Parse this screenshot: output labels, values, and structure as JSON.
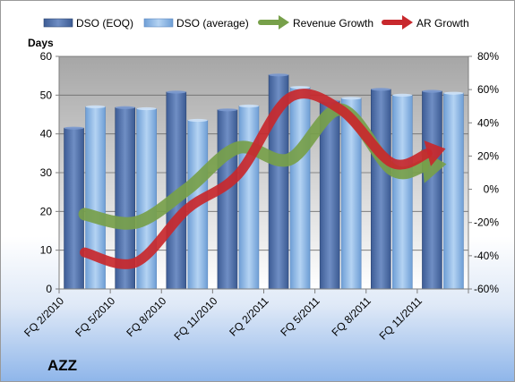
{
  "chart_data": {
    "type": "bar",
    "title": "AZZ",
    "ylabel": "Days",
    "xlabel": "",
    "categories": [
      "FQ 2/2010",
      "FQ 5/2010",
      "FQ 8/2010",
      "FQ 11/2010",
      "FQ 2/2011",
      "FQ 5/2011",
      "FQ 8/2011",
      "FQ 11/2011"
    ],
    "ylim": [
      0,
      60
    ],
    "y_ticks": [
      "0",
      "10",
      "20",
      "30",
      "40",
      "50",
      "60"
    ],
    "y2lim": [
      -60,
      80
    ],
    "y2_ticks": [
      "-60%",
      "-40%",
      "-20%",
      "0%",
      "20%",
      "40%",
      "60%",
      "80%"
    ],
    "series": [
      {
        "name": "DSO (EOQ)",
        "kind": "bar",
        "axis": "left",
        "color": "#4f6fa6",
        "values": [
          41.5,
          46.8,
          50.8,
          46.2,
          55.2,
          48.5,
          51.5,
          51.0
        ]
      },
      {
        "name": "DSO (average)",
        "kind": "bar",
        "axis": "left",
        "color": "#8db7e6",
        "values": [
          47.0,
          46.5,
          43.5,
          47.2,
          52.0,
          49.2,
          50.0,
          50.5
        ]
      },
      {
        "name": "Revenue Growth",
        "kind": "arrow-line",
        "axis": "right",
        "color": "#77a04a",
        "values": [
          -15,
          -20,
          0,
          25,
          18,
          48,
          12,
          15
        ]
      },
      {
        "name": "AR Growth",
        "kind": "arrow-line",
        "axis": "right",
        "color": "#c8282d",
        "values": [
          -38,
          -44,
          -12,
          9,
          55,
          48,
          16,
          24
        ]
      }
    ],
    "grid": true,
    "legend": "top"
  }
}
